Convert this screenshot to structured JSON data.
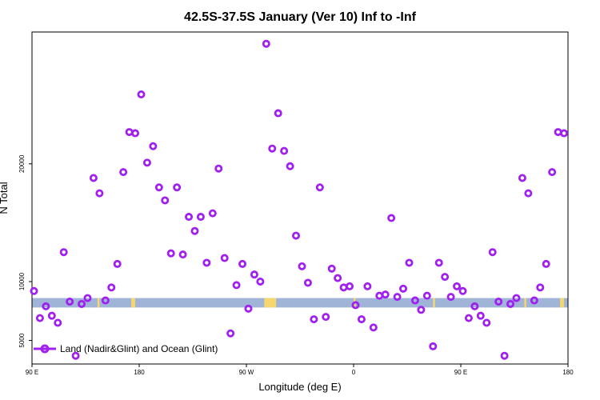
{
  "chart_data": {
    "type": "scatter",
    "title": "42.5S-37.5S January (Ver 10)   Inf to -Inf",
    "xlabel": "Longitude (deg E)",
    "ylabel": "N Total",
    "xlim": [
      -90,
      180
    ],
    "ylim": [
      3000,
      31200
    ],
    "x_ticks": [
      {
        "value": -90,
        "label": "90 E"
      },
      {
        "value": -36,
        "label": "180"
      },
      {
        "value": 18,
        "label": "90 W"
      },
      {
        "value": 72,
        "label": "0"
      },
      {
        "value": 126,
        "label": "90 E"
      },
      {
        "value": 180,
        "label": "180"
      }
    ],
    "y_ticks": [
      5000,
      10000,
      20000
    ],
    "grid": false,
    "legend": {
      "label": "Land (Nadir&Glint) and Ocean (Glint)",
      "position": "bottom-left"
    },
    "colors": {
      "series": "#a020f0",
      "ocean_band": "#a0b4d8",
      "land_band": "#f5d76e"
    },
    "band": {
      "y_min": 7800,
      "y_max": 8600
    },
    "land_segments": [
      [
        -57,
        -56
      ],
      [
        -40,
        -38
      ],
      [
        27,
        33
      ],
      [
        72,
        73
      ],
      [
        112,
        113
      ],
      [
        158,
        159
      ],
      [
        176,
        178
      ]
    ],
    "series": [
      {
        "x": [
          -89,
          -86,
          -83,
          -80,
          -77,
          -74,
          -71,
          -68,
          -65,
          -62,
          -59,
          -56,
          -53,
          -50,
          -47,
          -44,
          -41,
          -38,
          -35,
          -32,
          -29,
          -26,
          -23,
          -20,
          -17,
          -14,
          -11,
          -8,
          -5,
          -2,
          1,
          4,
          7,
          10,
          13,
          16,
          19,
          22,
          25,
          28,
          31,
          34,
          37,
          40,
          43,
          46,
          49,
          52,
          55,
          58,
          61,
          64,
          67,
          70,
          73,
          76,
          79,
          82,
          85,
          88,
          91,
          94,
          97,
          100,
          103,
          106,
          109,
          112,
          115,
          118,
          121,
          124,
          127,
          130,
          133,
          136,
          139,
          142,
          145,
          148,
          151,
          154,
          157,
          160,
          163,
          166,
          169,
          172,
          175,
          178
        ],
        "y": [
          9200,
          6900,
          7900,
          7100,
          6500,
          12500,
          8300,
          3700,
          8100,
          8600,
          18800,
          17500,
          8400,
          9500,
          11500,
          19300,
          22700,
          22600,
          25900,
          20100,
          21500,
          18000,
          16900,
          12400,
          18000,
          12300,
          15500,
          14300,
          15500,
          11600,
          15800,
          19600,
          12000,
          5600,
          9700,
          11500,
          7700,
          10600,
          10000,
          30200,
          21300,
          24300,
          21100,
          19800,
          13900,
          11300,
          9900,
          6800,
          18000,
          7000,
          11100,
          10300,
          9500,
          9600,
          8000,
          6800,
          9600,
          6100,
          8800,
          8900,
          15400,
          8700,
          9400,
          11600,
          8400,
          7600,
          8800,
          4500,
          11600,
          10400,
          8700,
          9600,
          9200,
          6900,
          7900,
          7100,
          6500,
          12500,
          8300,
          3700,
          8100,
          8600,
          18800,
          17500,
          8400,
          9500,
          11500,
          19300,
          22700,
          22600
        ]
      }
    ]
  }
}
